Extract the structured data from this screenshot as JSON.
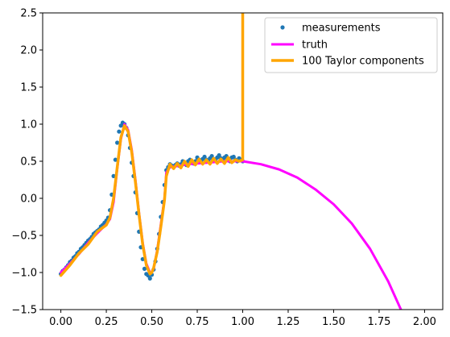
{
  "chart_data": {
    "type": "scatter",
    "title": "",
    "xlabel": "",
    "ylabel": "",
    "xlim": [
      -0.1,
      2.1
    ],
    "ylim": [
      -1.5,
      2.5
    ],
    "x_ticks": [
      "0.00",
      "0.25",
      "0.50",
      "0.75",
      "1.00",
      "1.25",
      "1.50",
      "1.75",
      "2.00"
    ],
    "x_tick_values": [
      0,
      0.25,
      0.5,
      0.75,
      1.0,
      1.25,
      1.5,
      1.75,
      2.0
    ],
    "y_ticks": [
      "−1.5",
      "−1.0",
      "−0.5",
      "0.0",
      "0.5",
      "1.0",
      "1.5",
      "2.0",
      "2.5"
    ],
    "y_tick_values": [
      -1.5,
      -1.0,
      -0.5,
      0.0,
      0.5,
      1.0,
      1.5,
      2.0,
      2.5
    ],
    "legend": {
      "position": "upper-right",
      "entries": [
        "measurements",
        "truth",
        "100 Taylor components"
      ]
    },
    "series": [
      {
        "name": "measurements",
        "kind": "scatter",
        "color": "#1f77b4",
        "x": [
          0.0,
          0.01,
          0.02,
          0.03,
          0.04,
          0.05,
          0.06,
          0.07,
          0.08,
          0.09,
          0.1,
          0.11,
          0.12,
          0.13,
          0.14,
          0.15,
          0.16,
          0.17,
          0.18,
          0.19,
          0.2,
          0.21,
          0.22,
          0.23,
          0.24,
          0.25,
          0.26,
          0.27,
          0.28,
          0.29,
          0.3,
          0.31,
          0.32,
          0.33,
          0.34,
          0.35,
          0.36,
          0.37,
          0.38,
          0.39,
          0.4,
          0.41,
          0.42,
          0.43,
          0.44,
          0.45,
          0.46,
          0.47,
          0.48,
          0.49,
          0.5,
          0.51,
          0.52,
          0.53,
          0.54,
          0.55,
          0.56,
          0.57,
          0.58,
          0.59,
          0.6,
          0.61,
          0.62,
          0.63,
          0.64,
          0.65,
          0.66,
          0.67,
          0.68,
          0.69,
          0.7,
          0.71,
          0.72,
          0.73,
          0.74,
          0.75,
          0.76,
          0.77,
          0.78,
          0.79,
          0.8,
          0.81,
          0.82,
          0.83,
          0.84,
          0.85,
          0.86,
          0.87,
          0.88,
          0.89,
          0.9,
          0.91,
          0.92,
          0.93,
          0.94,
          0.95,
          0.96,
          0.97,
          0.98,
          0.99,
          1.0
        ],
        "y": [
          -1.02,
          -0.98,
          -0.96,
          -0.93,
          -0.9,
          -0.86,
          -0.84,
          -0.8,
          -0.78,
          -0.74,
          -0.72,
          -0.68,
          -0.66,
          -0.63,
          -0.6,
          -0.57,
          -0.55,
          -0.52,
          -0.48,
          -0.46,
          -0.44,
          -0.42,
          -0.38,
          -0.36,
          -0.33,
          -0.3,
          -0.26,
          -0.16,
          0.05,
          0.3,
          0.52,
          0.75,
          0.9,
          0.98,
          1.02,
          1.0,
          0.95,
          0.85,
          0.68,
          0.48,
          0.3,
          0.08,
          -0.2,
          -0.45,
          -0.66,
          -0.82,
          -0.95,
          -1.02,
          -1.04,
          -1.08,
          -1.03,
          -0.96,
          -0.85,
          -0.68,
          -0.48,
          -0.25,
          -0.05,
          0.18,
          0.38,
          0.42,
          0.46,
          0.44,
          0.42,
          0.45,
          0.47,
          0.44,
          0.46,
          0.5,
          0.47,
          0.45,
          0.5,
          0.52,
          0.49,
          0.47,
          0.5,
          0.55,
          0.52,
          0.5,
          0.53,
          0.56,
          0.52,
          0.5,
          0.54,
          0.57,
          0.53,
          0.51,
          0.55,
          0.58,
          0.54,
          0.52,
          0.55,
          0.57,
          0.52,
          0.5,
          0.55,
          0.56,
          0.52,
          0.5,
          0.54,
          0.52,
          0.5
        ]
      },
      {
        "name": "truth",
        "kind": "line",
        "color": "#ff00ff",
        "x": [
          0.0,
          0.05,
          0.1,
          0.15,
          0.2,
          0.25,
          0.27,
          0.29,
          0.31,
          0.33,
          0.35,
          0.37,
          0.39,
          0.41,
          0.43,
          0.45,
          0.47,
          0.49,
          0.5,
          0.51,
          0.53,
          0.55,
          0.57,
          0.58,
          0.6,
          0.65,
          0.7,
          0.75,
          0.8,
          0.85,
          0.9,
          0.95,
          1.0,
          1.1,
          1.2,
          1.3,
          1.4,
          1.5,
          1.6,
          1.7,
          1.8,
          1.87
        ],
        "y": [
          -1.0,
          -0.88,
          -0.75,
          -0.6,
          -0.47,
          -0.35,
          -0.28,
          -0.05,
          0.4,
          0.8,
          1.0,
          0.92,
          0.65,
          0.25,
          -0.2,
          -0.6,
          -0.88,
          -1.0,
          -1.0,
          -0.95,
          -0.7,
          -0.35,
          0.0,
          0.35,
          0.42,
          0.44,
          0.46,
          0.47,
          0.48,
          0.49,
          0.5,
          0.5,
          0.5,
          0.46,
          0.39,
          0.28,
          0.12,
          -0.08,
          -0.34,
          -0.68,
          -1.12,
          -1.5
        ]
      },
      {
        "name": "100 Taylor components",
        "kind": "line",
        "color": "#ffa500",
        "x": [
          0.0,
          0.05,
          0.1,
          0.15,
          0.2,
          0.25,
          0.27,
          0.29,
          0.31,
          0.33,
          0.35,
          0.37,
          0.39,
          0.41,
          0.43,
          0.45,
          0.47,
          0.49,
          0.5,
          0.51,
          0.53,
          0.55,
          0.57,
          0.58,
          0.6,
          0.62,
          0.64,
          0.66,
          0.68,
          0.7,
          0.72,
          0.74,
          0.76,
          0.78,
          0.8,
          0.82,
          0.84,
          0.86,
          0.88,
          0.9,
          0.92,
          0.94,
          0.96,
          0.98,
          1.0,
          1.0
        ],
        "y": [
          -1.04,
          -0.9,
          -0.74,
          -0.62,
          -0.45,
          -0.36,
          -0.26,
          0.0,
          0.42,
          0.82,
          0.98,
          0.9,
          0.62,
          0.22,
          -0.22,
          -0.62,
          -0.9,
          -1.02,
          -1.0,
          -0.94,
          -0.72,
          -0.38,
          -0.02,
          0.3,
          0.46,
          0.4,
          0.47,
          0.41,
          0.5,
          0.43,
          0.52,
          0.45,
          0.53,
          0.46,
          0.52,
          0.46,
          0.54,
          0.47,
          0.53,
          0.47,
          0.55,
          0.48,
          0.52,
          0.5,
          0.52,
          2.5
        ]
      }
    ]
  }
}
